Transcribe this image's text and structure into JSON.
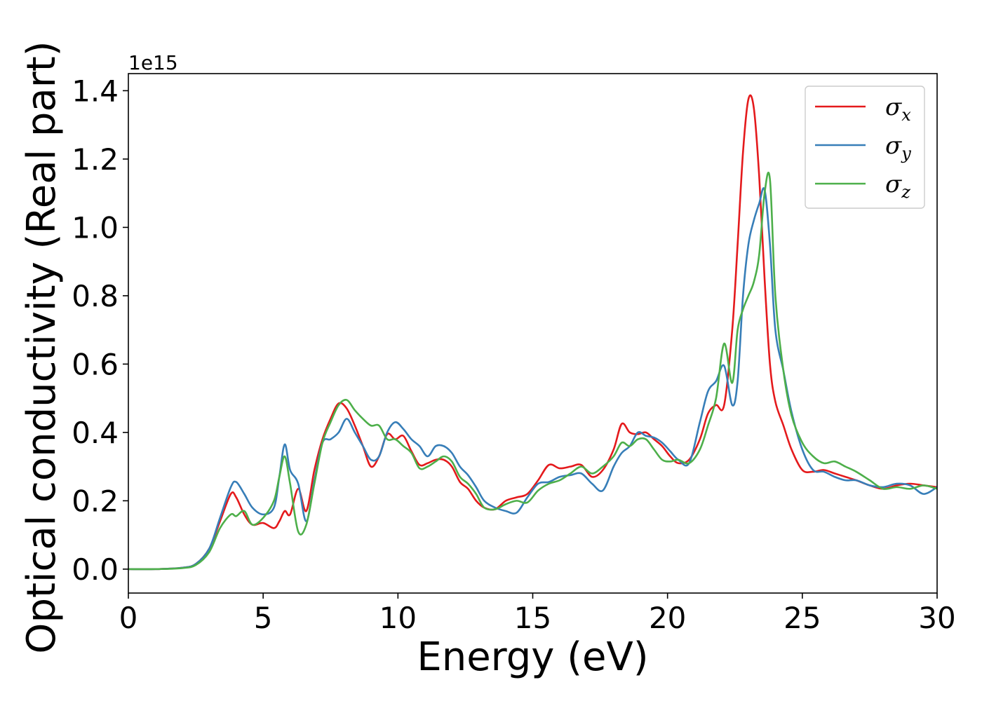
{
  "chart_data": {
    "type": "line",
    "title": "",
    "xlabel": "Energy (eV)",
    "ylabel": "Optical conductivity (Real part)",
    "y_offset_label": "1e15",
    "xlim": [
      0,
      30
    ],
    "ylim": [
      -0.07,
      1.45
    ],
    "xticks": [
      0,
      5,
      10,
      15,
      20,
      25,
      30
    ],
    "xtick_labels": [
      "0",
      "5",
      "10",
      "15",
      "20",
      "25",
      "30"
    ],
    "yticks": [
      0.0,
      0.2,
      0.4,
      0.6,
      0.8,
      1.0,
      1.2,
      1.4
    ],
    "ytick_labels": [
      "0.0",
      "0.2",
      "0.4",
      "0.6",
      "0.8",
      "1.0",
      "1.2",
      "1.4"
    ],
    "grid": false,
    "legend_position": "top-right",
    "series": [
      {
        "name": "σ",
        "subscript": "x",
        "color": "#e41a1c",
        "x": [
          0,
          1,
          2,
          2.5,
          3,
          3.4,
          3.8,
          4.0,
          4.3,
          4.6,
          5.0,
          5.4,
          5.6,
          5.8,
          6.0,
          6.3,
          6.6,
          6.9,
          7.2,
          7.5,
          7.8,
          8.1,
          8.4,
          8.7,
          9.0,
          9.3,
          9.6,
          9.9,
          10.2,
          10.5,
          10.8,
          11.1,
          11.4,
          11.7,
          12.0,
          12.3,
          12.6,
          12.9,
          13.2,
          13.6,
          14.0,
          14.4,
          14.8,
          15.2,
          15.6,
          16.0,
          16.4,
          16.8,
          17.2,
          17.6,
          18.0,
          18.3,
          18.6,
          18.9,
          19.2,
          19.5,
          19.8,
          20.1,
          20.4,
          20.8,
          21.2,
          21.5,
          21.8,
          22.1,
          22.4,
          22.6,
          22.8,
          23.0,
          23.2,
          23.4,
          23.6,
          23.8,
          24.0,
          24.3,
          24.6,
          25.0,
          25.4,
          25.8,
          26.2,
          26.6,
          27.0,
          27.5,
          28.0,
          28.5,
          29.0,
          29.5,
          30.0
        ],
        "y": [
          0.0,
          0.0,
          0.004,
          0.015,
          0.06,
          0.14,
          0.22,
          0.21,
          0.16,
          0.13,
          0.135,
          0.12,
          0.14,
          0.17,
          0.16,
          0.235,
          0.17,
          0.29,
          0.38,
          0.44,
          0.485,
          0.47,
          0.42,
          0.36,
          0.3,
          0.33,
          0.395,
          0.38,
          0.39,
          0.345,
          0.305,
          0.31,
          0.32,
          0.32,
          0.3,
          0.255,
          0.235,
          0.2,
          0.18,
          0.175,
          0.2,
          0.21,
          0.22,
          0.26,
          0.305,
          0.295,
          0.3,
          0.305,
          0.27,
          0.29,
          0.35,
          0.425,
          0.4,
          0.395,
          0.4,
          0.38,
          0.36,
          0.33,
          0.31,
          0.32,
          0.38,
          0.455,
          0.48,
          0.48,
          0.7,
          0.95,
          1.22,
          1.375,
          1.35,
          1.15,
          0.85,
          0.6,
          0.49,
          0.42,
          0.35,
          0.29,
          0.285,
          0.29,
          0.28,
          0.27,
          0.26,
          0.245,
          0.235,
          0.245,
          0.25,
          0.245,
          0.24
        ]
      },
      {
        "name": "σ",
        "subscript": "y",
        "color": "#377eb8",
        "x": [
          0,
          1,
          2,
          2.5,
          3,
          3.4,
          3.8,
          4.0,
          4.3,
          4.6,
          5.0,
          5.4,
          5.6,
          5.8,
          6.0,
          6.3,
          6.6,
          6.9,
          7.2,
          7.5,
          7.8,
          8.1,
          8.4,
          8.7,
          9.0,
          9.3,
          9.6,
          9.9,
          10.2,
          10.5,
          10.8,
          11.1,
          11.4,
          11.7,
          12.0,
          12.3,
          12.6,
          12.9,
          13.2,
          13.6,
          14.0,
          14.4,
          14.8,
          15.2,
          15.6,
          16.0,
          16.4,
          16.8,
          17.2,
          17.6,
          18.0,
          18.3,
          18.6,
          18.9,
          19.2,
          19.5,
          19.8,
          20.1,
          20.4,
          20.8,
          21.2,
          21.5,
          21.8,
          22.1,
          22.4,
          22.6,
          22.8,
          23.0,
          23.2,
          23.4,
          23.6,
          23.8,
          24.0,
          24.3,
          24.6,
          25.0,
          25.4,
          25.8,
          26.2,
          26.6,
          27.0,
          27.5,
          28.0,
          28.5,
          29.0,
          29.5,
          30.0
        ],
        "y": [
          0.0,
          0.0,
          0.004,
          0.015,
          0.06,
          0.15,
          0.24,
          0.255,
          0.22,
          0.18,
          0.16,
          0.18,
          0.27,
          0.365,
          0.29,
          0.25,
          0.14,
          0.26,
          0.37,
          0.38,
          0.4,
          0.44,
          0.4,
          0.36,
          0.32,
          0.33,
          0.4,
          0.43,
          0.41,
          0.38,
          0.36,
          0.33,
          0.36,
          0.36,
          0.34,
          0.3,
          0.275,
          0.24,
          0.2,
          0.18,
          0.17,
          0.165,
          0.21,
          0.25,
          0.255,
          0.27,
          0.275,
          0.28,
          0.25,
          0.23,
          0.3,
          0.34,
          0.36,
          0.4,
          0.39,
          0.385,
          0.37,
          0.345,
          0.32,
          0.31,
          0.43,
          0.52,
          0.55,
          0.595,
          0.48,
          0.55,
          0.8,
          0.95,
          1.02,
          1.07,
          1.11,
          0.95,
          0.7,
          0.58,
          0.46,
          0.35,
          0.29,
          0.285,
          0.27,
          0.26,
          0.26,
          0.245,
          0.24,
          0.25,
          0.245,
          0.22,
          0.24
        ]
      },
      {
        "name": "σ",
        "subscript": "z",
        "color": "#4daf4a",
        "x": [
          0,
          1,
          2,
          2.5,
          3,
          3.4,
          3.8,
          4.0,
          4.3,
          4.6,
          5.0,
          5.4,
          5.6,
          5.8,
          6.0,
          6.3,
          6.6,
          6.9,
          7.2,
          7.5,
          7.8,
          8.1,
          8.4,
          8.7,
          9.0,
          9.3,
          9.6,
          9.9,
          10.2,
          10.5,
          10.8,
          11.1,
          11.4,
          11.7,
          12.0,
          12.3,
          12.6,
          12.9,
          13.2,
          13.6,
          14.0,
          14.4,
          14.8,
          15.2,
          15.6,
          16.0,
          16.4,
          16.8,
          17.2,
          17.6,
          18.0,
          18.3,
          18.6,
          18.9,
          19.2,
          19.5,
          19.8,
          20.1,
          20.4,
          20.8,
          21.2,
          21.5,
          21.8,
          22.1,
          22.4,
          22.6,
          22.8,
          23.0,
          23.2,
          23.4,
          23.6,
          23.8,
          24.0,
          24.3,
          24.6,
          25.0,
          25.4,
          25.8,
          26.2,
          26.6,
          27.0,
          27.5,
          28.0,
          28.5,
          29.0,
          29.5,
          30.0
        ],
        "y": [
          0.0,
          0.0,
          0.003,
          0.012,
          0.05,
          0.12,
          0.16,
          0.155,
          0.17,
          0.13,
          0.15,
          0.2,
          0.27,
          0.33,
          0.25,
          0.11,
          0.13,
          0.25,
          0.37,
          0.43,
          0.48,
          0.495,
          0.465,
          0.44,
          0.42,
          0.42,
          0.38,
          0.38,
          0.36,
          0.34,
          0.295,
          0.3,
          0.315,
          0.33,
          0.315,
          0.27,
          0.25,
          0.22,
          0.18,
          0.175,
          0.19,
          0.2,
          0.195,
          0.23,
          0.25,
          0.26,
          0.28,
          0.3,
          0.28,
          0.3,
          0.33,
          0.37,
          0.36,
          0.38,
          0.38,
          0.35,
          0.32,
          0.315,
          0.32,
          0.31,
          0.35,
          0.42,
          0.5,
          0.66,
          0.545,
          0.7,
          0.76,
          0.8,
          0.84,
          0.92,
          1.1,
          1.14,
          0.8,
          0.58,
          0.45,
          0.37,
          0.33,
          0.31,
          0.315,
          0.3,
          0.285,
          0.26,
          0.235,
          0.24,
          0.235,
          0.245,
          0.235
        ]
      }
    ]
  }
}
